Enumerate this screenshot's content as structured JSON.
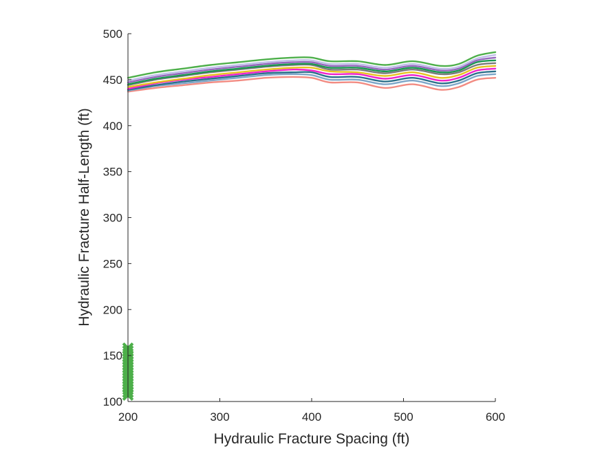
{
  "chart_data": {
    "type": "line",
    "xlabel": "Hydraulic Fracture Spacing (ft)",
    "ylabel": "Hydraulic Fracture Half-Length (ft)",
    "xlim": [
      200,
      600
    ],
    "ylim": [
      100,
      500
    ],
    "xticks": [
      "200",
      "300",
      "400",
      "500",
      "600"
    ],
    "yticks": [
      "100",
      "150",
      "200",
      "250",
      "300",
      "350",
      "400",
      "450",
      "500"
    ],
    "grid": false,
    "x": [
      200,
      230,
      260,
      290,
      320,
      350,
      380,
      400,
      420,
      450,
      480,
      510,
      540,
      560,
      580,
      600
    ],
    "series": [
      {
        "color": "#4daf4a",
        "values": [
          452,
          458,
          462,
          466,
          469,
          472,
          474,
          474,
          470,
          470,
          466,
          470,
          465,
          467,
          476,
          480
        ]
      },
      {
        "color": "#bfbfe8",
        "values": [
          449,
          455,
          459,
          463,
          466,
          469,
          471,
          471,
          467,
          467,
          463,
          467,
          462,
          464,
          473,
          477
        ]
      },
      {
        "color": "#9467bd",
        "values": [
          447,
          453,
          457,
          461,
          464,
          467,
          469,
          469,
          465,
          465,
          461,
          465,
          460,
          462,
          471,
          474
        ]
      },
      {
        "color": "#1a9850",
        "values": [
          445,
          451,
          455,
          459,
          462,
          465,
          467,
          467,
          463,
          463,
          459,
          463,
          458,
          460,
          469,
          471
        ]
      },
      {
        "color": "#7a7a7a",
        "values": [
          444,
          450,
          454,
          458,
          461,
          464,
          466,
          466,
          461,
          461,
          457,
          461,
          456,
          458,
          466,
          468
        ]
      },
      {
        "color": "#e6c220",
        "values": [
          442,
          447,
          451,
          455,
          458,
          461,
          463,
          463,
          459,
          458,
          454,
          458,
          452,
          455,
          463,
          465
        ]
      },
      {
        "color": "#ee22cc",
        "values": [
          440,
          446,
          450,
          453,
          456,
          459,
          461,
          460,
          456,
          456,
          451,
          455,
          449,
          452,
          460,
          462
        ]
      },
      {
        "color": "#2a6f8a",
        "values": [
          439,
          444,
          448,
          451,
          454,
          457,
          458,
          458,
          453,
          453,
          448,
          452,
          446,
          449,
          457,
          459
        ]
      },
      {
        "color": "#7da6c8",
        "values": [
          438,
          443,
          446,
          449,
          452,
          455,
          456,
          455,
          450,
          450,
          445,
          449,
          443,
          446,
          454,
          456
        ]
      },
      {
        "color": "#f28b82",
        "values": [
          437,
          441,
          444,
          447,
          449,
          452,
          453,
          452,
          447,
          447,
          441,
          445,
          439,
          442,
          450,
          452
        ]
      }
    ],
    "markers": {
      "shape": "x",
      "color": "#4daf4a",
      "x": [
        200,
        200,
        200,
        200,
        200,
        200,
        200,
        200,
        200,
        200,
        200,
        200,
        200,
        200,
        200,
        200,
        200,
        200,
        200,
        200
      ],
      "y": [
        107,
        110,
        113,
        116,
        119,
        122,
        125,
        128,
        131,
        134,
        137,
        140,
        143,
        146,
        149,
        152,
        155,
        158,
        110,
        155
      ]
    }
  }
}
